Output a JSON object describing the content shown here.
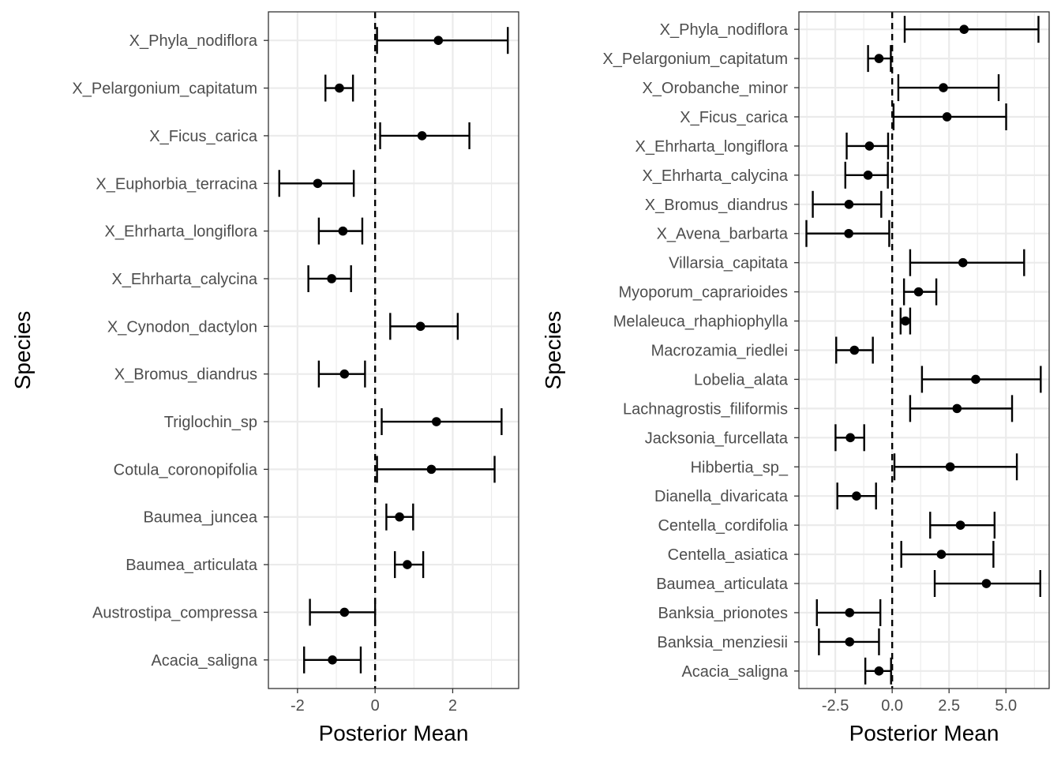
{
  "chart_data": [
    {
      "type": "scatter",
      "subtype": "dot-errorbar",
      "xlabel": "Posterior Mean",
      "ylabel": "Species",
      "xlim": [
        -2.75,
        3.7
      ],
      "x_ticks": [
        -2,
        0,
        2
      ],
      "x_tick_labels": [
        "-2",
        "0",
        "2"
      ],
      "reference_line": {
        "x": 0,
        "style": "dashed"
      },
      "grid": true,
      "points": [
        {
          "species": "X_Phyla_nodiflora",
          "mean": 1.63,
          "lower": 0.05,
          "upper": 3.42
        },
        {
          "species": "X_Pelargonium_capitatum",
          "mean": -0.92,
          "lower": -1.28,
          "upper": -0.57
        },
        {
          "species": "X_Ficus_carica",
          "mean": 1.21,
          "lower": 0.13,
          "upper": 2.43
        },
        {
          "species": "X_Euphorbia_terracina",
          "mean": -1.48,
          "lower": -2.47,
          "upper": -0.55
        },
        {
          "species": "X_Ehrharta_longiflora",
          "mean": -0.83,
          "lower": -1.45,
          "upper": -0.33
        },
        {
          "species": "X_Ehrharta_calycina",
          "mean": -1.12,
          "lower": -1.72,
          "upper": -0.62
        },
        {
          "species": "X_Cynodon_dactylon",
          "mean": 1.17,
          "lower": 0.39,
          "upper": 2.13
        },
        {
          "species": "X_Bromus_diandrus",
          "mean": -0.79,
          "lower": -1.45,
          "upper": -0.26
        },
        {
          "species": "Triglochin_sp",
          "mean": 1.58,
          "lower": 0.17,
          "upper": 3.26
        },
        {
          "species": "Cotula_coronopifolia",
          "mean": 1.45,
          "lower": 0.05,
          "upper": 3.08
        },
        {
          "species": "Baumea_juncea",
          "mean": 0.63,
          "lower": 0.29,
          "upper": 0.98
        },
        {
          "species": "Baumea_articulata",
          "mean": 0.83,
          "lower": 0.51,
          "upper": 1.24
        },
        {
          "species": "Austrostipa_compressa",
          "mean": -0.79,
          "lower": -1.68,
          "upper": 0.0
        },
        {
          "species": "Acacia_saligna",
          "mean": -1.1,
          "lower": -1.83,
          "upper": -0.37
        }
      ]
    },
    {
      "type": "scatter",
      "subtype": "dot-errorbar",
      "xlabel": "Posterior Mean",
      "ylabel": "Species",
      "xlim": [
        -4.1,
        6.9
      ],
      "x_ticks": [
        -2.5,
        0.0,
        2.5,
        5.0
      ],
      "x_tick_labels": [
        "-2.5",
        "0.0",
        "2.5",
        "5.0"
      ],
      "reference_line": {
        "x": 0,
        "style": "dashed"
      },
      "grid": true,
      "points": [
        {
          "species": "X_Phyla_nodiflora",
          "mean": 3.16,
          "lower": 0.55,
          "upper": 6.43
        },
        {
          "species": "X_Pelargonium_capitatum",
          "mean": -0.58,
          "lower": -1.06,
          "upper": -0.06
        },
        {
          "species": "X_Orobanche_minor",
          "mean": 2.25,
          "lower": 0.27,
          "upper": 4.68
        },
        {
          "species": "X_Ficus_carica",
          "mean": 2.41,
          "lower": 0.06,
          "upper": 5.01
        },
        {
          "species": "X_Ehrharta_longiflora",
          "mean": -1.0,
          "lower": -2.0,
          "upper": -0.18
        },
        {
          "species": "X_Ehrharta_calycina",
          "mean": -1.06,
          "lower": -2.06,
          "upper": -0.19
        },
        {
          "species": "X_Bromus_diandrus",
          "mean": -1.9,
          "lower": -3.49,
          "upper": -0.48
        },
        {
          "species": "X_Avena_barbarta",
          "mean": -1.91,
          "lower": -3.77,
          "upper": -0.13
        },
        {
          "species": "Villarsia_capitata",
          "mean": 3.11,
          "lower": 0.79,
          "upper": 5.8
        },
        {
          "species": "Myoporum_caprarioides",
          "mean": 1.16,
          "lower": 0.52,
          "upper": 1.94
        },
        {
          "species": "Melaleuca_rhaphiophylla",
          "mean": 0.58,
          "lower": 0.37,
          "upper": 0.79
        },
        {
          "species": "Macrozamia_riedlei",
          "mean": -1.66,
          "lower": -2.46,
          "upper": -0.85
        },
        {
          "species": "Lobelia_alata",
          "mean": 3.67,
          "lower": 1.31,
          "upper": 6.53
        },
        {
          "species": "Lachnagrostis_filiformis",
          "mean": 2.85,
          "lower": 0.79,
          "upper": 5.27
        },
        {
          "species": "Jacksonia_furcellata",
          "mean": -1.84,
          "lower": -2.49,
          "upper": -1.23
        },
        {
          "species": "Hibbertia_sp_",
          "mean": 2.55,
          "lower": 0.1,
          "upper": 5.48
        },
        {
          "species": "Dianella_divaricata",
          "mean": -1.57,
          "lower": -2.41,
          "upper": -0.71
        },
        {
          "species": "Centella_cordifolia",
          "mean": 3.0,
          "lower": 1.67,
          "upper": 4.5
        },
        {
          "species": "Centella_asiatica",
          "mean": 2.16,
          "lower": 0.4,
          "upper": 4.45
        },
        {
          "species": "Baumea_articulata",
          "mean": 4.14,
          "lower": 1.87,
          "upper": 6.51
        },
        {
          "species": "Banksia_prionotes",
          "mean": -1.87,
          "lower": -3.31,
          "upper": -0.52
        },
        {
          "species": "Banksia_menziesii",
          "mean": -1.87,
          "lower": -3.22,
          "upper": -0.58
        },
        {
          "species": "Acacia_saligna",
          "mean": -0.58,
          "lower": -1.18,
          "upper": -0.05
        }
      ]
    }
  ]
}
